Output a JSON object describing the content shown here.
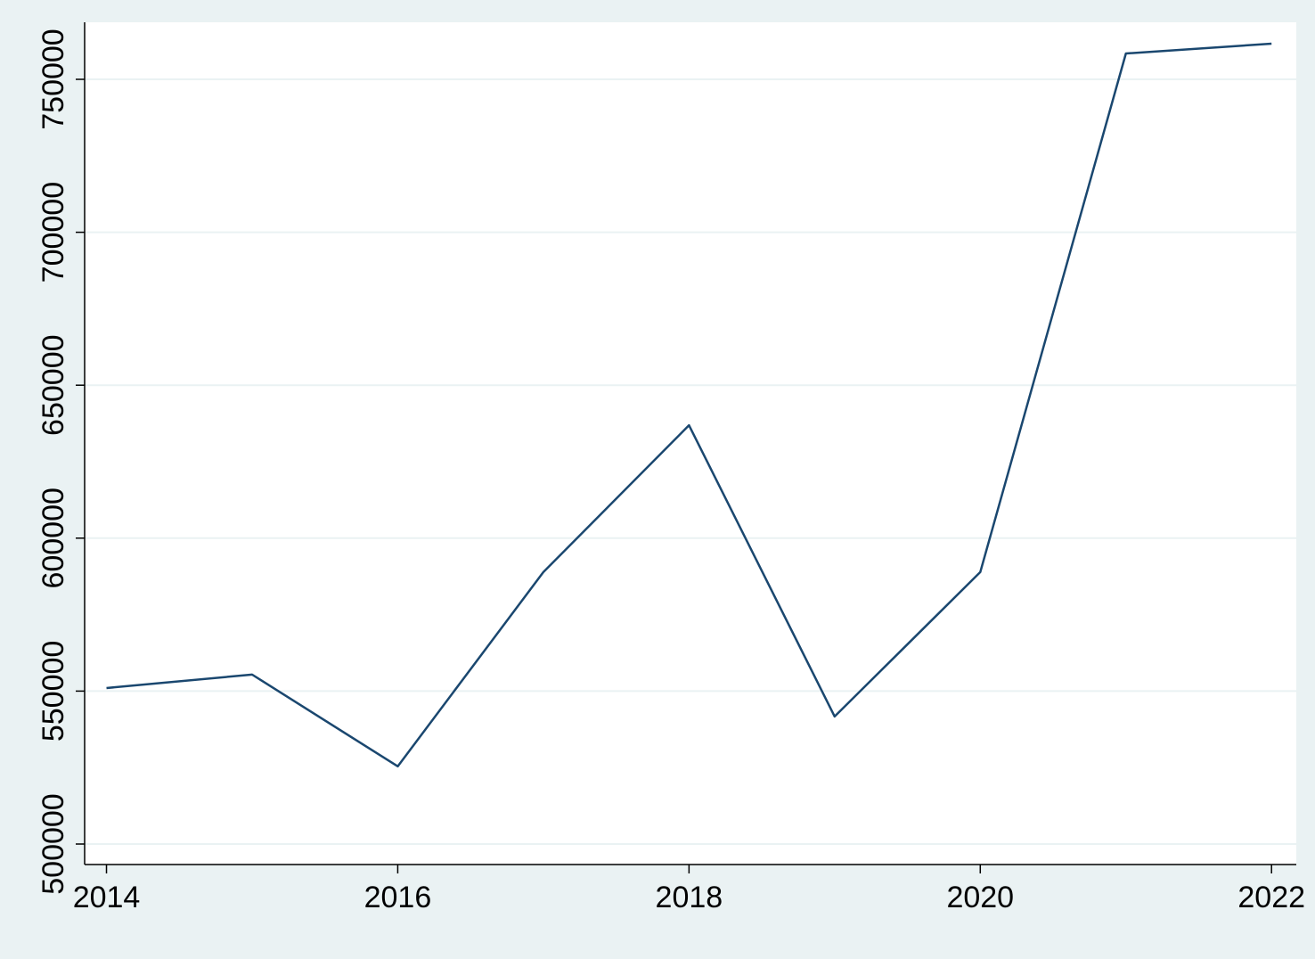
{
  "chart_data": {
    "type": "line",
    "x": [
      2014,
      2015,
      2016,
      2017,
      2018,
      2019,
      2020,
      2021,
      2022
    ],
    "series": [
      {
        "color": "#1a476f",
        "values": [
          551000,
          555400,
          525400,
          588900,
          636900,
          541700,
          588900,
          758450,
          761650
        ]
      }
    ],
    "xlim": [
      2013.85,
      2022.17
    ],
    "xticks": [
      2014,
      2016,
      2018,
      2020,
      2022
    ],
    "ylim": [
      493300,
      768650
    ],
    "yticks": [
      500000,
      550000,
      600000,
      650000,
      700000,
      750000
    ],
    "grid": true
  }
}
